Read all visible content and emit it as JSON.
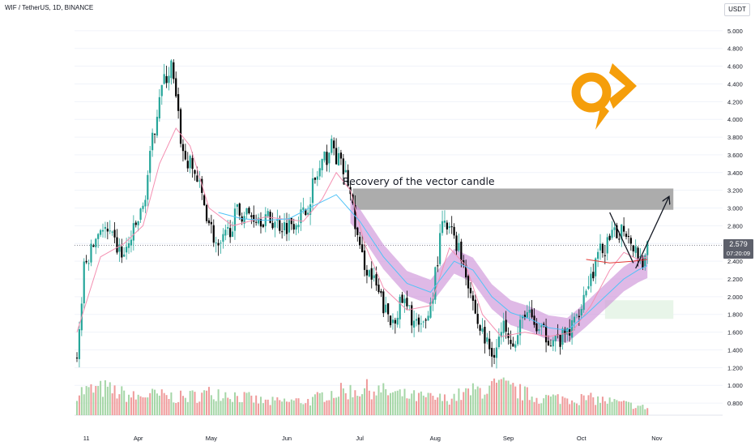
{
  "header": {
    "symbol_title": "WIF / TetherUS, 1D, BINANCE",
    "currency": "USDT"
  },
  "price_badge": {
    "price": "2.579",
    "countdown": "07:20:09"
  },
  "annotation": {
    "text": "Recovery of the vector candle"
  },
  "colors": {
    "bull": "#26a69a",
    "bear": "#000000",
    "volume_bull": "#a5d6a7",
    "volume_bear": "#ef9a9a",
    "ema_fast": "#f48fb1",
    "ema_mid": "#4fc3f7",
    "band": "#ce93d8",
    "zone_grey": "#9e9e9e",
    "zone_green": "#e8f5e9",
    "logo": "#f59e0b",
    "grid": "#f0f3fa"
  },
  "logo": {
    "icon": "logo-21-icon"
  },
  "chart_data": {
    "type": "candlestick",
    "x_tick_labels": [
      "11",
      "Apr",
      "May",
      "Jun",
      "Jul",
      "Aug",
      "Sep",
      "Oct",
      "Nov"
    ],
    "y_tick_labels": [
      "0.800",
      "1.000",
      "1.200",
      "1.400",
      "1.600",
      "1.800",
      "2.000",
      "2.200",
      "2.400",
      "2.600",
      "2.800",
      "3.000",
      "3.200",
      "3.400",
      "3.600",
      "3.800",
      "4.000",
      "4.200",
      "4.400",
      "4.600",
      "4.800",
      "5.000"
    ],
    "y_range": [
      0.7,
      5.2
    ],
    "last_price": 2.579,
    "path": [
      [
        0,
        1.3
      ],
      [
        3,
        2.3
      ],
      [
        10,
        2.8
      ],
      [
        20,
        2.45
      ],
      [
        28,
        3.0
      ],
      [
        35,
        4.3
      ],
      [
        40,
        4.6
      ],
      [
        45,
        3.6
      ],
      [
        50,
        3.4
      ],
      [
        60,
        2.5
      ],
      [
        68,
        2.95
      ],
      [
        78,
        2.9
      ],
      [
        88,
        2.8
      ],
      [
        97,
        2.95
      ],
      [
        100,
        3.25
      ],
      [
        108,
        3.7
      ],
      [
        115,
        3.3
      ],
      [
        120,
        2.5
      ],
      [
        126,
        2.15
      ],
      [
        133,
        1.7
      ],
      [
        138,
        1.95
      ],
      [
        146,
        1.6
      ],
      [
        150,
        1.9
      ],
      [
        155,
        2.8
      ],
      [
        160,
        2.7
      ],
      [
        165,
        2.3
      ],
      [
        170,
        1.7
      ],
      [
        176,
        1.35
      ],
      [
        182,
        1.7
      ],
      [
        186,
        1.45
      ],
      [
        190,
        1.85
      ],
      [
        196,
        1.6
      ],
      [
        205,
        1.5
      ],
      [
        210,
        1.65
      ],
      [
        216,
        2.1
      ],
      [
        222,
        2.5
      ],
      [
        227,
        2.65
      ],
      [
        232,
        2.8
      ],
      [
        236,
        2.6
      ],
      [
        240,
        2.4
      ],
      [
        242,
        2.58
      ]
    ],
    "ema_fast": [
      [
        0,
        1.6
      ],
      [
        10,
        2.45
      ],
      [
        20,
        2.6
      ],
      [
        28,
        2.8
      ],
      [
        35,
        3.5
      ],
      [
        42,
        3.9
      ],
      [
        48,
        3.7
      ],
      [
        56,
        3.0
      ],
      [
        66,
        2.8
      ],
      [
        80,
        2.9
      ],
      [
        96,
        2.85
      ],
      [
        104,
        3.1
      ],
      [
        110,
        3.4
      ],
      [
        116,
        3.2
      ],
      [
        122,
        2.6
      ],
      [
        130,
        2.1
      ],
      [
        140,
        1.85
      ],
      [
        150,
        1.9
      ],
      [
        158,
        2.55
      ],
      [
        165,
        2.35
      ],
      [
        172,
        1.8
      ],
      [
        180,
        1.55
      ],
      [
        190,
        1.6
      ],
      [
        200,
        1.55
      ],
      [
        210,
        1.6
      ],
      [
        218,
        1.9
      ],
      [
        226,
        2.3
      ],
      [
        232,
        2.5
      ],
      [
        238,
        2.42
      ],
      [
        242,
        2.45
      ]
    ],
    "ema_mid": [
      [
        60,
        2.95
      ],
      [
        70,
        2.88
      ],
      [
        80,
        2.86
      ],
      [
        90,
        2.88
      ],
      [
        100,
        3.02
      ],
      [
        110,
        3.15
      ],
      [
        120,
        2.85
      ],
      [
        130,
        2.45
      ],
      [
        140,
        2.15
      ],
      [
        150,
        2.05
      ],
      [
        160,
        2.4
      ],
      [
        168,
        2.3
      ],
      [
        176,
        2.0
      ],
      [
        184,
        1.82
      ],
      [
        192,
        1.75
      ],
      [
        200,
        1.65
      ],
      [
        208,
        1.62
      ],
      [
        216,
        1.8
      ],
      [
        224,
        2.0
      ],
      [
        232,
        2.2
      ],
      [
        238,
        2.3
      ],
      [
        242,
        2.35
      ]
    ],
    "overlay_line": [
      [
        216,
        2.42
      ],
      [
        226,
        2.38
      ],
      [
        236,
        2.4
      ],
      [
        242,
        2.42
      ]
    ],
    "band": {
      "start": 116,
      "end": 242,
      "width": 0.14
    },
    "volume": [
      {
        "bar": 0,
        "vol": 0.8
      },
      {
        "bar": 12,
        "vol": 0.9
      },
      {
        "bar": 25,
        "vol": 0.6
      },
      {
        "bar": 30,
        "vol": 0.7
      },
      {
        "bar": 45,
        "vol": 0.6
      },
      {
        "bar": 60,
        "vol": 0.8
      },
      {
        "bar": 80,
        "vol": 0.45
      },
      {
        "bar": 100,
        "vol": 0.5
      },
      {
        "bar": 106,
        "vol": 0.75
      },
      {
        "bar": 124,
        "vol": 0.9
      },
      {
        "bar": 140,
        "vol": 0.65
      },
      {
        "bar": 156,
        "vol": 0.55
      },
      {
        "bar": 170,
        "vol": 0.85
      },
      {
        "bar": 180,
        "vol": 1.0
      },
      {
        "bar": 195,
        "vol": 0.6
      },
      {
        "bar": 220,
        "vol": 0.55
      },
      {
        "bar": 235,
        "vol": 0.35
      },
      {
        "bar": 242,
        "vol": 0.25
      }
    ],
    "zones": [
      {
        "name": "vector-candle-zone",
        "from_bar": 117,
        "to_bar": 253,
        "low": 2.98,
        "high": 3.22
      },
      {
        "name": "support-zone",
        "from_bar": 224,
        "to_bar": 253,
        "low": 1.75,
        "high": 1.96
      }
    ],
    "drawings": [
      {
        "name": "down-trend-line",
        "from": [
          226,
          2.95
        ],
        "to": [
          236,
          2.38
        ]
      },
      {
        "name": "projection-arrow",
        "from": [
          237,
          2.32
        ],
        "to": [
          251,
          3.12
        ]
      }
    ],
    "price_line": 2.579
  }
}
